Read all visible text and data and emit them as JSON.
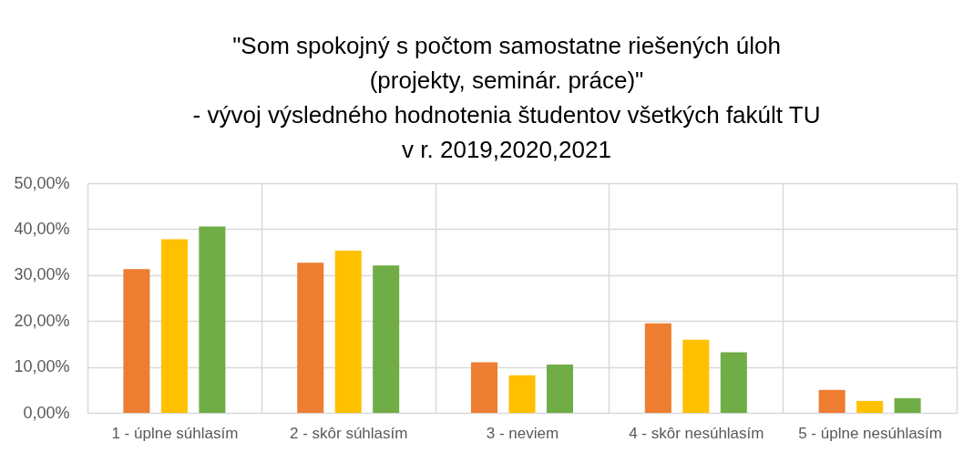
{
  "chart_data": {
    "type": "bar",
    "title": "\"Som spokojný s počtom samostatne riešených úloh\n(projekty, seminár. práce)\"\n- vývoj výsledného hodnotenia študentov všetkých fakúlt TU\nv r. 2019,2020,2021",
    "categories": [
      "1 - úplne súhlasím",
      "2 - skôr súhlasím",
      "3 - neviem",
      "4 - skôr nesúhlasím",
      "5 - úplne nesúhlasím"
    ],
    "series": [
      {
        "color": "#ed7d31",
        "values": [
          31.3,
          32.7,
          11.0,
          19.5,
          5.0
        ]
      },
      {
        "color": "#ffc000",
        "values": [
          37.8,
          35.3,
          8.2,
          15.9,
          2.6
        ]
      },
      {
        "color": "#70ad47",
        "values": [
          40.6,
          32.1,
          10.5,
          13.2,
          3.2
        ]
      }
    ],
    "ylim": [
      0,
      50
    ],
    "yticks": [
      {
        "value": 0,
        "label": "0,00%"
      },
      {
        "value": 10,
        "label": "10,00%"
      },
      {
        "value": 20,
        "label": "20,00%"
      },
      {
        "value": 30,
        "label": "30,00%"
      },
      {
        "value": 40,
        "label": "40,00%"
      },
      {
        "value": 50,
        "label": "50,00%"
      }
    ],
    "grid": true,
    "legend": false
  }
}
